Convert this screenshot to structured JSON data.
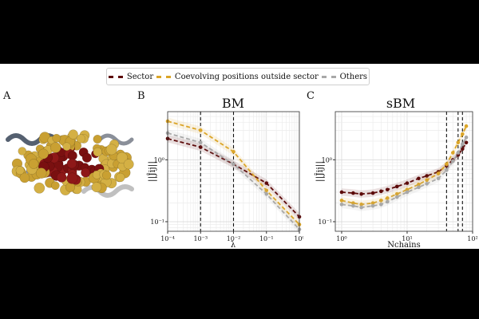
{
  "legend": {
    "items": [
      {
        "label": "Sector",
        "color": "#5c0a0a"
      },
      {
        "label": "Coevolving positions outside sector",
        "color": "#dba528"
      },
      {
        "label": "Others",
        "color": "#a8a8a8"
      }
    ]
  },
  "panels": {
    "a": "A",
    "b": "B",
    "c": "C"
  },
  "chart_data": [
    {
      "type": "line",
      "title": "BM",
      "xlabel": "λ",
      "ylabel": "||Ĵij||",
      "xscale": "log",
      "yscale": "log",
      "xlim": [
        0.0001,
        1
      ],
      "ylim": [
        0.07,
        6
      ],
      "xticks": [
        0.0001,
        0.001,
        0.01,
        0.1,
        1
      ],
      "xticklabels": [
        "10⁻⁴",
        "10⁻³",
        "10⁻²",
        "10⁻¹",
        "10⁰"
      ],
      "yticks": [
        0.1,
        1
      ],
      "yticklabels": [
        "10⁻¹",
        "10⁰"
      ],
      "grid": true,
      "vlines": [
        0.001,
        0.01
      ],
      "series": [
        {
          "name": "Sector",
          "color": "#5c0a0a",
          "x": [
            0.0001,
            0.001,
            0.01,
            0.1,
            1
          ],
          "y": [
            2.2,
            1.6,
            0.85,
            0.42,
            0.12
          ]
        },
        {
          "name": "Coevolving positions outside sector",
          "color": "#dba528",
          "x": [
            0.0001,
            0.001,
            0.01,
            0.1,
            1
          ],
          "y": [
            4.2,
            3.0,
            1.35,
            0.32,
            0.09
          ]
        },
        {
          "name": "Others",
          "color": "#a8a8a8",
          "x": [
            0.0001,
            0.001,
            0.01,
            0.1,
            1
          ],
          "y": [
            2.7,
            1.9,
            0.85,
            0.28,
            0.075
          ]
        }
      ]
    },
    {
      "type": "line",
      "title": "sBM",
      "xlabel": "Nchains",
      "ylabel": "||Ĵij||",
      "xscale": "log",
      "yscale": "log",
      "xlim": [
        0.8,
        100
      ],
      "ylim": [
        0.07,
        6
      ],
      "xticks": [
        1,
        10,
        100
      ],
      "xticklabels": [
        "10⁰",
        "10¹",
        "10²"
      ],
      "yticks": [
        0.1,
        1
      ],
      "yticklabels": [
        "10⁻¹",
        "10⁰"
      ],
      "grid": true,
      "vlines": [
        40,
        60,
        70
      ],
      "series": [
        {
          "name": "Sector",
          "color": "#5c0a0a",
          "x": [
            1,
            1.5,
            2,
            3,
            4,
            5,
            7,
            10,
            15,
            20,
            30,
            40,
            50,
            60,
            70,
            80
          ],
          "y": [
            0.3,
            0.29,
            0.28,
            0.29,
            0.31,
            0.33,
            0.37,
            0.42,
            0.5,
            0.55,
            0.64,
            0.8,
            1.0,
            1.2,
            1.5,
            1.9
          ]
        },
        {
          "name": "Coevolving positions outside sector",
          "color": "#dba528",
          "x": [
            1,
            1.5,
            2,
            3,
            4,
            5,
            7,
            10,
            15,
            20,
            30,
            40,
            50,
            60,
            70,
            80
          ],
          "y": [
            0.22,
            0.2,
            0.19,
            0.2,
            0.22,
            0.24,
            0.28,
            0.33,
            0.4,
            0.47,
            0.6,
            0.85,
            1.3,
            1.9,
            2.6,
            3.5
          ]
        },
        {
          "name": "Others",
          "color": "#a8a8a8",
          "x": [
            1,
            1.5,
            2,
            3,
            4,
            5,
            7,
            10,
            15,
            20,
            30,
            40,
            50,
            60,
            70,
            80
          ],
          "y": [
            0.19,
            0.18,
            0.17,
            0.18,
            0.19,
            0.21,
            0.25,
            0.3,
            0.36,
            0.41,
            0.5,
            0.68,
            0.95,
            1.3,
            1.8,
            2.3
          ]
        }
      ]
    }
  ]
}
